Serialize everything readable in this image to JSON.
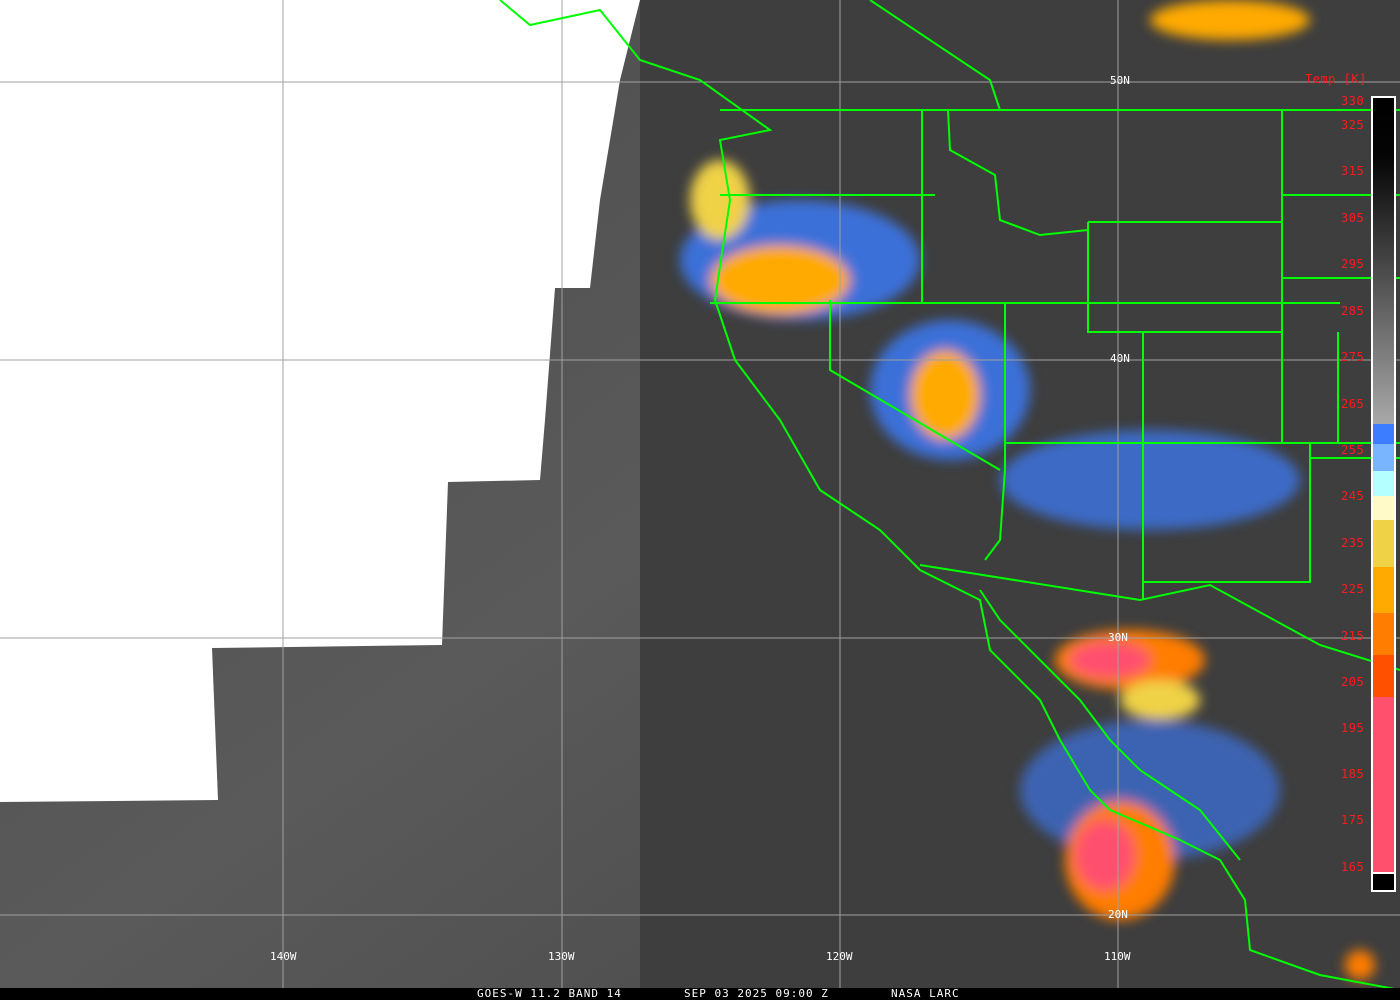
{
  "colorbar": {
    "title": "Temp [K]",
    "ticks": [
      "330",
      "325",
      "315",
      "305",
      "295",
      "285",
      "275",
      "265",
      "255",
      "245",
      "235",
      "225",
      "215",
      "205",
      "195",
      "185",
      "175",
      "165"
    ],
    "colors": {
      "warm": "#000000",
      "cold_gray": "#a8a8a8",
      "blue": "#3c7dff",
      "light_blue": "#78b4ff",
      "cyan": "#b4ffff",
      "pale_yellow": "#fffac8",
      "yellow": "#f0d246",
      "orange": "#ffaa00",
      "dark_orange": "#ff7d00",
      "red_orange": "#ff5000",
      "pink": "#ff506e"
    }
  },
  "grid": {
    "lat_labels": [
      "50N",
      "40N",
      "30N",
      "20N"
    ],
    "lon_labels": [
      "140W",
      "130W",
      "120W",
      "110W"
    ]
  },
  "footer": {
    "satellite": "GOES-W 11.2 BAND 14",
    "datetime": "SEP 03 2025 09:00 Z",
    "source": "NASA LARC"
  },
  "colors": {
    "boundaries": "#00ff00",
    "grid": "#a0a0a0",
    "labels": "#ff1a1a"
  }
}
